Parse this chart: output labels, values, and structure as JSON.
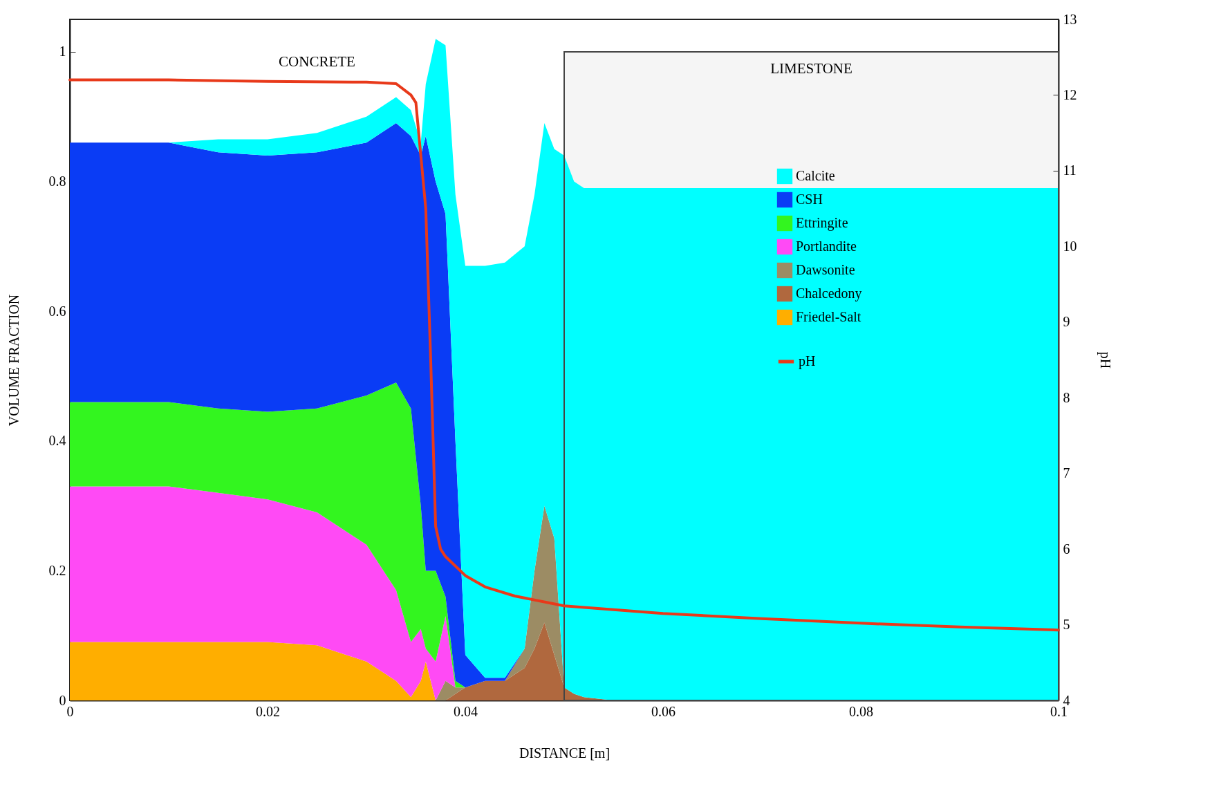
{
  "chart_data": {
    "type": "area",
    "stacked": true,
    "xlabel": "DISTANCE [m]",
    "ylabel": "VOLUME FRACTION",
    "y2label": "pH",
    "x": [
      0,
      0.005,
      0.01,
      0.015,
      0.02,
      0.025,
      0.03,
      0.033,
      0.0345,
      0.0355,
      0.036,
      0.037,
      0.038,
      0.039,
      0.04,
      0.042,
      0.044,
      0.046,
      0.047,
      0.048,
      0.049,
      0.05,
      0.051,
      0.052,
      0.055,
      0.06,
      0.07,
      0.08,
      0.09,
      0.1
    ],
    "series": [
      {
        "name": "Friedel-Salt",
        "color": "#ffae00",
        "values": [
          0.09,
          0.09,
          0.09,
          0.09,
          0.09,
          0.085,
          0.06,
          0.03,
          0.005,
          0.03,
          0.06,
          0,
          0,
          0,
          0,
          0,
          0,
          0,
          0,
          0,
          0,
          0,
          0,
          0,
          0,
          0,
          0,
          0,
          0,
          0
        ]
      },
      {
        "name": "Chalcedony",
        "color": "#b0683e",
        "values": [
          0,
          0,
          0,
          0,
          0,
          0,
          0,
          0,
          0,
          0,
          0,
          0,
          0,
          0.01,
          0.02,
          0.03,
          0.03,
          0.05,
          0.08,
          0.12,
          0.07,
          0.02,
          0.01,
          0.005,
          0,
          0,
          0,
          0,
          0,
          0
        ]
      },
      {
        "name": "Dawsonite",
        "color": "#9c8c64",
        "values": [
          0,
          0,
          0,
          0,
          0,
          0,
          0,
          0,
          0,
          0,
          0,
          0,
          0.03,
          0.01,
          0,
          0,
          0,
          0.03,
          0.12,
          0.18,
          0.18,
          0,
          0,
          0,
          0,
          0,
          0,
          0,
          0,
          0
        ]
      },
      {
        "name": "Portlandite",
        "color": "#ff4af5",
        "values": [
          0.24,
          0.24,
          0.24,
          0.23,
          0.22,
          0.205,
          0.18,
          0.14,
          0.085,
          0.08,
          0.02,
          0.06,
          0.1,
          0,
          0,
          0,
          0,
          0,
          0,
          0,
          0,
          0,
          0,
          0,
          0,
          0,
          0,
          0,
          0,
          0
        ]
      },
      {
        "name": "Ettringite",
        "color": "#33f51f",
        "values": [
          0.13,
          0.13,
          0.13,
          0.13,
          0.135,
          0.16,
          0.23,
          0.32,
          0.36,
          0.19,
          0.12,
          0.14,
          0.03,
          0.01,
          0,
          0,
          0,
          0,
          0,
          0,
          0,
          0,
          0,
          0,
          0,
          0,
          0,
          0,
          0,
          0
        ]
      },
      {
        "name": "CSH",
        "color": "#0a3cf5",
        "values": [
          0.4,
          0.4,
          0.4,
          0.395,
          0.395,
          0.395,
          0.39,
          0.4,
          0.42,
          0.54,
          0.67,
          0.6,
          0.59,
          0.37,
          0.05,
          0.005,
          0.005,
          0,
          0,
          0,
          0,
          0,
          0,
          0,
          0,
          0,
          0,
          0,
          0,
          0
        ]
      },
      {
        "name": "Calcite",
        "color": "#00ffff",
        "values": [
          0,
          0,
          0,
          0.02,
          0.025,
          0.03,
          0.04,
          0.04,
          0.04,
          0.02,
          0.08,
          0.22,
          0.26,
          0.38,
          0.6,
          0.635,
          0.64,
          0.62,
          0.58,
          0.59,
          0.6,
          0.82,
          0.79,
          0.785,
          0.79,
          0.79,
          0.79,
          0.79,
          0.79,
          0.79
        ]
      },
      {
        "name": "pH",
        "type": "line",
        "axis": "y2",
        "color": "#e8391a",
        "x": [
          0,
          0.01,
          0.02,
          0.03,
          0.033,
          0.0345,
          0.035,
          0.0355,
          0.036,
          0.0365,
          0.037,
          0.0375,
          0.038,
          0.04,
          0.042,
          0.045,
          0.05,
          0.06,
          0.07,
          0.08,
          0.09,
          0.1
        ],
        "values": [
          12.2,
          12.2,
          12.18,
          12.17,
          12.15,
          12.0,
          11.9,
          11.2,
          10.5,
          8.5,
          6.3,
          6.0,
          5.9,
          5.65,
          5.5,
          5.38,
          5.25,
          5.15,
          5.08,
          5.02,
          4.97,
          4.93
        ]
      }
    ],
    "xlim": [
      0,
      0.1
    ],
    "xticks": [
      0,
      0.02,
      0.04,
      0.06,
      0.08,
      0.1
    ],
    "ylim": [
      0,
      1.05
    ],
    "yticks": [
      0,
      0.2,
      0.4,
      0.6,
      0.8,
      1
    ],
    "y2lim": [
      4,
      13
    ],
    "y2ticks": [
      4,
      5,
      6,
      7,
      8,
      9,
      10,
      11,
      12,
      13
    ],
    "bands": [
      {
        "axis": "x",
        "from": 0.05,
        "to": 0.1,
        "label": "LIMESTONE"
      }
    ],
    "annotations": [
      "CONCRETE"
    ],
    "legend": "top right",
    "grid": false
  }
}
